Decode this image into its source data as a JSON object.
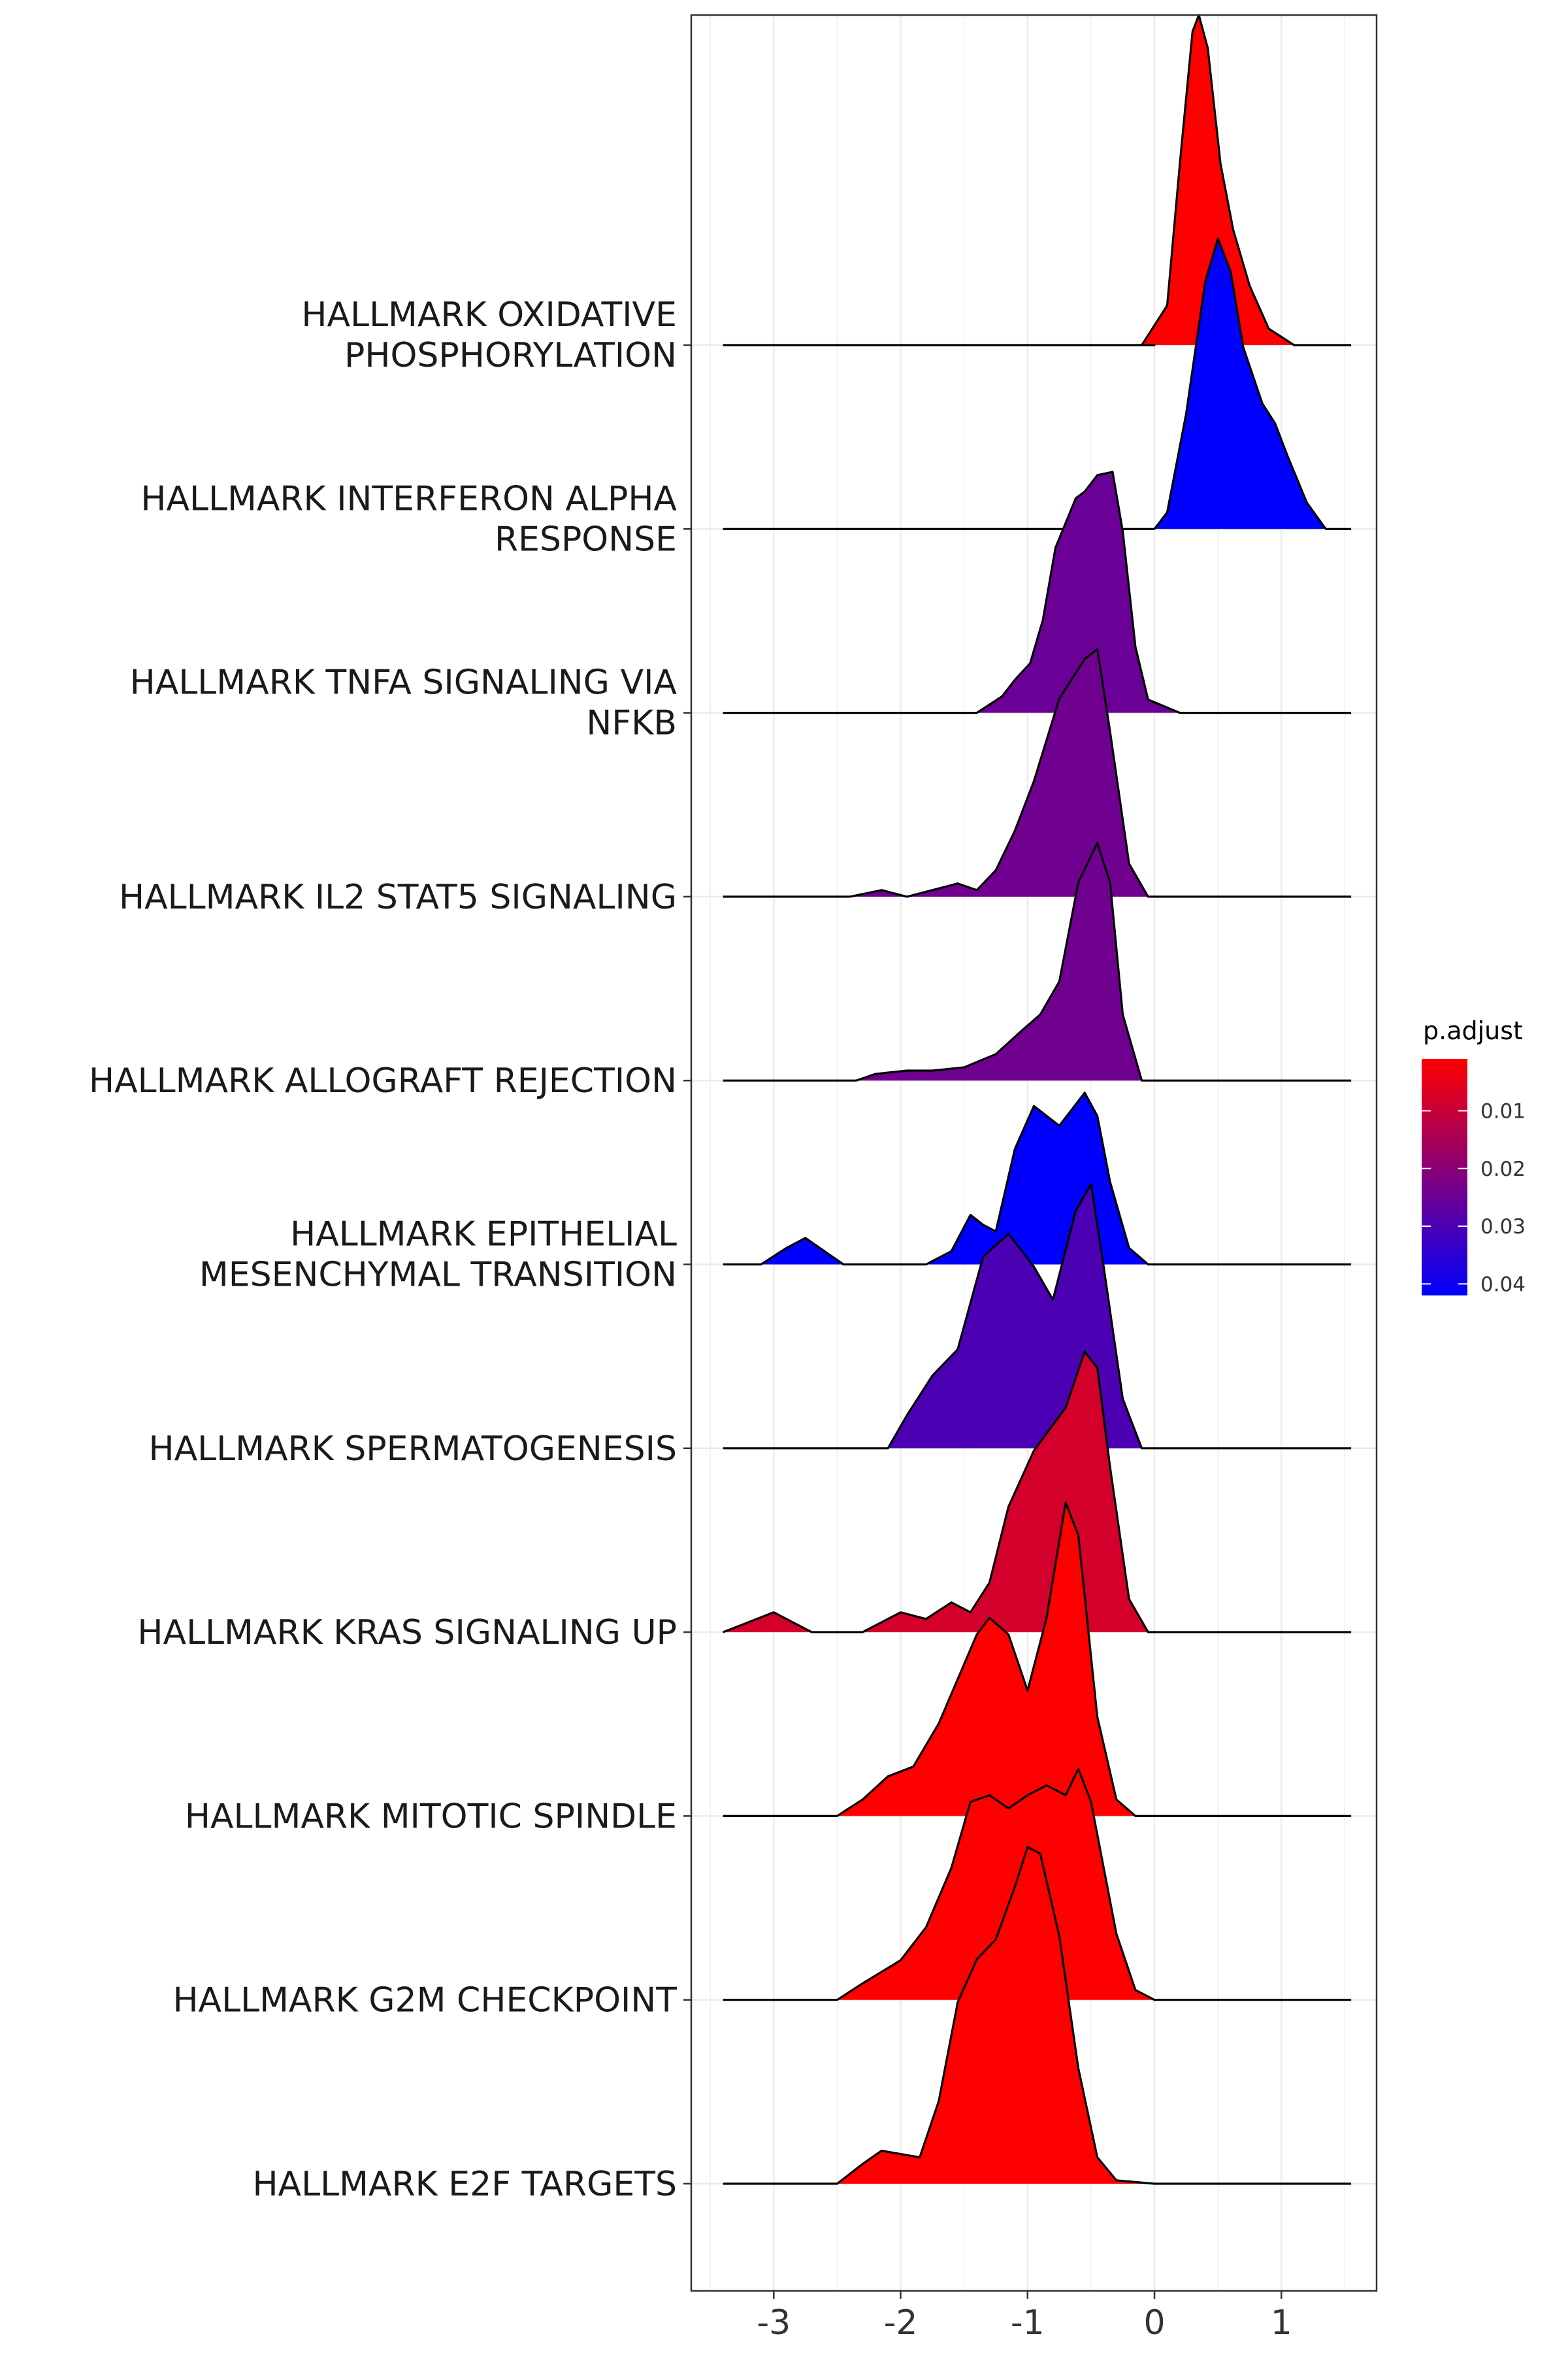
{
  "chart_data": {
    "type": "ridgeline",
    "title": "",
    "xlabel": "",
    "ylabel": "",
    "xlim": [
      -3.65,
      1.75
    ],
    "x_ticks": [
      -3,
      -2,
      -1,
      0,
      1
    ],
    "x_tick_labels": [
      "-3",
      "-2",
      "-1",
      "0",
      "1"
    ],
    "grid": true,
    "legend": {
      "title": "p.adjust",
      "position": "right",
      "ticks": [
        0.01,
        0.02,
        0.03,
        0.04
      ],
      "tick_labels": [
        "0.01",
        "0.02",
        "0.03",
        "0.04"
      ],
      "range": [
        0.001,
        0.042
      ],
      "low_color": "#ff0000",
      "high_color": "#0000ff"
    },
    "series": [
      {
        "label_lines": [
          "HALLMARK OXIDATIVE",
          "PHOSPHORYLATION"
        ],
        "p_adjust": 0.001,
        "points": [
          [
            -3.4,
            0
          ],
          [
            0.0,
            0
          ],
          [
            -0.1,
            0
          ],
          [
            0.1,
            0.12
          ],
          [
            0.2,
            0.55
          ],
          [
            0.3,
            0.95
          ],
          [
            0.35,
            1.0
          ],
          [
            0.42,
            0.9
          ],
          [
            0.52,
            0.55
          ],
          [
            0.62,
            0.35
          ],
          [
            0.75,
            0.18
          ],
          [
            0.9,
            0.05
          ],
          [
            1.1,
            0
          ],
          [
            1.55,
            0
          ]
        ]
      },
      {
        "label_lines": [
          "HALLMARK INTERFERON ALPHA",
          "RESPONSE"
        ],
        "p_adjust": 0.042,
        "points": [
          [
            -3.4,
            0
          ],
          [
            0.0,
            0
          ],
          [
            0.1,
            0.05
          ],
          [
            0.25,
            0.35
          ],
          [
            0.4,
            0.75
          ],
          [
            0.5,
            0.88
          ],
          [
            0.6,
            0.78
          ],
          [
            0.7,
            0.55
          ],
          [
            0.85,
            0.38
          ],
          [
            0.95,
            0.32
          ],
          [
            1.05,
            0.22
          ],
          [
            1.2,
            0.08
          ],
          [
            1.35,
            0
          ],
          [
            1.55,
            0
          ]
        ]
      },
      {
        "label_lines": [
          "HALLMARK TNFA SIGNALING VIA",
          "NFKB"
        ],
        "p_adjust": 0.025,
        "points": [
          [
            -3.4,
            0
          ],
          [
            -1.4,
            0
          ],
          [
            -1.2,
            0.05
          ],
          [
            -1.1,
            0.1
          ],
          [
            -0.98,
            0.15
          ],
          [
            -0.88,
            0.28
          ],
          [
            -0.78,
            0.5
          ],
          [
            -0.62,
            0.65
          ],
          [
            -0.55,
            0.67
          ],
          [
            -0.45,
            0.72
          ],
          [
            -0.33,
            0.73
          ],
          [
            -0.25,
            0.55
          ],
          [
            -0.15,
            0.2
          ],
          [
            -0.05,
            0.04
          ],
          [
            0.2,
            0
          ],
          [
            1.55,
            0
          ]
        ]
      },
      {
        "label_lines": [
          "HALLMARK IL2 STAT5 SIGNALING"
        ],
        "p_adjust": 0.024,
        "points": [
          [
            -3.4,
            0
          ],
          [
            -2.4,
            0
          ],
          [
            -2.15,
            0.02
          ],
          [
            -1.95,
            0
          ],
          [
            -1.75,
            0.02
          ],
          [
            -1.55,
            0.04
          ],
          [
            -1.4,
            0.02
          ],
          [
            -1.25,
            0.08
          ],
          [
            -1.1,
            0.2
          ],
          [
            -0.95,
            0.35
          ],
          [
            -0.75,
            0.6
          ],
          [
            -0.55,
            0.72
          ],
          [
            -0.45,
            0.75
          ],
          [
            -0.35,
            0.5
          ],
          [
            -0.2,
            0.1
          ],
          [
            -0.05,
            0
          ],
          [
            1.55,
            0
          ]
        ]
      },
      {
        "label_lines": [
          "HALLMARK ALLOGRAFT REJECTION"
        ],
        "p_adjust": 0.024,
        "points": [
          [
            -3.4,
            0
          ],
          [
            -2.35,
            0
          ],
          [
            -2.2,
            0.02
          ],
          [
            -1.95,
            0.03
          ],
          [
            -1.75,
            0.03
          ],
          [
            -1.5,
            0.04
          ],
          [
            -1.25,
            0.08
          ],
          [
            -1.05,
            0.15
          ],
          [
            -0.9,
            0.2
          ],
          [
            -0.75,
            0.3
          ],
          [
            -0.6,
            0.6
          ],
          [
            -0.45,
            0.72
          ],
          [
            -0.35,
            0.6
          ],
          [
            -0.25,
            0.2
          ],
          [
            -0.1,
            0
          ],
          [
            1.55,
            0
          ]
        ]
      },
      {
        "label_lines": [
          "HALLMARK EPITHELIAL",
          "MESENCHYMAL TRANSITION"
        ],
        "p_adjust": 0.042,
        "points": [
          [
            -3.4,
            0
          ],
          [
            -3.1,
            0
          ],
          [
            -2.9,
            0.05
          ],
          [
            -2.75,
            0.08
          ],
          [
            -2.6,
            0.04
          ],
          [
            -2.45,
            0
          ],
          [
            -1.8,
            0
          ],
          [
            -1.6,
            0.04
          ],
          [
            -1.45,
            0.15
          ],
          [
            -1.35,
            0.12
          ],
          [
            -1.25,
            0.1
          ],
          [
            -1.1,
            0.35
          ],
          [
            -0.95,
            0.48
          ],
          [
            -0.75,
            0.42
          ],
          [
            -0.55,
            0.52
          ],
          [
            -0.45,
            0.45
          ],
          [
            -0.35,
            0.25
          ],
          [
            -0.2,
            0.05
          ],
          [
            -0.05,
            0
          ],
          [
            1.55,
            0
          ]
        ]
      },
      {
        "label_lines": [
          "HALLMARK SPERMATOGENESIS"
        ],
        "p_adjust": 0.03,
        "points": [
          [
            -3.4,
            0
          ],
          [
            -2.1,
            0
          ],
          [
            -1.95,
            0.1
          ],
          [
            -1.75,
            0.22
          ],
          [
            -1.55,
            0.3
          ],
          [
            -1.35,
            0.58
          ],
          [
            -1.15,
            0.65
          ],
          [
            -0.95,
            0.55
          ],
          [
            -0.8,
            0.45
          ],
          [
            -0.62,
            0.72
          ],
          [
            -0.5,
            0.8
          ],
          [
            -0.4,
            0.55
          ],
          [
            -0.25,
            0.15
          ],
          [
            -0.1,
            0
          ],
          [
            1.55,
            0
          ]
        ]
      },
      {
        "label_lines": [
          "HALLMARK KRAS SIGNALING UP"
        ],
        "p_adjust": 0.008,
        "points": [
          [
            -3.4,
            0
          ],
          [
            -3.2,
            0.03
          ],
          [
            -3.0,
            0.06
          ],
          [
            -2.85,
            0.03
          ],
          [
            -2.7,
            0
          ],
          [
            -2.3,
            0
          ],
          [
            -2.0,
            0.06
          ],
          [
            -1.8,
            0.04
          ],
          [
            -1.6,
            0.09
          ],
          [
            -1.45,
            0.06
          ],
          [
            -1.3,
            0.15
          ],
          [
            -1.15,
            0.38
          ],
          [
            -0.95,
            0.55
          ],
          [
            -0.7,
            0.68
          ],
          [
            -0.55,
            0.85
          ],
          [
            -0.45,
            0.8
          ],
          [
            -0.35,
            0.5
          ],
          [
            -0.2,
            0.1
          ],
          [
            -0.05,
            0
          ],
          [
            1.55,
            0
          ]
        ]
      },
      {
        "label_lines": [
          "HALLMARK MITOTIC SPINDLE"
        ],
        "p_adjust": 0.001,
        "points": [
          [
            -3.4,
            0
          ],
          [
            -2.5,
            0
          ],
          [
            -2.3,
            0.05
          ],
          [
            -2.1,
            0.12
          ],
          [
            -1.9,
            0.15
          ],
          [
            -1.7,
            0.28
          ],
          [
            -1.4,
            0.55
          ],
          [
            -1.3,
            0.6
          ],
          [
            -1.15,
            0.55
          ],
          [
            -1.0,
            0.38
          ],
          [
            -0.85,
            0.6
          ],
          [
            -0.7,
            0.95
          ],
          [
            -0.6,
            0.85
          ],
          [
            -0.45,
            0.3
          ],
          [
            -0.3,
            0.05
          ],
          [
            -0.15,
            0
          ],
          [
            1.55,
            0
          ]
        ]
      },
      {
        "label_lines": [
          "HALLMARK G2M CHECKPOINT"
        ],
        "p_adjust": 0.001,
        "points": [
          [
            -3.4,
            0
          ],
          [
            -2.5,
            0
          ],
          [
            -2.3,
            0.05
          ],
          [
            -2.0,
            0.12
          ],
          [
            -1.8,
            0.22
          ],
          [
            -1.6,
            0.4
          ],
          [
            -1.45,
            0.6
          ],
          [
            -1.3,
            0.62
          ],
          [
            -1.15,
            0.58
          ],
          [
            -1.0,
            0.62
          ],
          [
            -0.85,
            0.65
          ],
          [
            -0.7,
            0.62
          ],
          [
            -0.6,
            0.7
          ],
          [
            -0.5,
            0.6
          ],
          [
            -0.3,
            0.2
          ],
          [
            -0.15,
            0.03
          ],
          [
            0.0,
            0
          ],
          [
            1.55,
            0
          ]
        ]
      },
      {
        "label_lines": [
          "HALLMARK E2F TARGETS"
        ],
        "p_adjust": 0.001,
        "points": [
          [
            -3.4,
            0
          ],
          [
            -2.5,
            0
          ],
          [
            -2.3,
            0.06
          ],
          [
            -2.15,
            0.1
          ],
          [
            -2.0,
            0.09
          ],
          [
            -1.85,
            0.08
          ],
          [
            -1.7,
            0.25
          ],
          [
            -1.55,
            0.55
          ],
          [
            -1.4,
            0.68
          ],
          [
            -1.25,
            0.74
          ],
          [
            -1.1,
            0.9
          ],
          [
            -1.0,
            1.02
          ],
          [
            -0.9,
            1.0
          ],
          [
            -0.75,
            0.75
          ],
          [
            -0.6,
            0.35
          ],
          [
            -0.45,
            0.08
          ],
          [
            -0.3,
            0.01
          ],
          [
            0.0,
            0
          ],
          [
            1.55,
            0
          ]
        ]
      }
    ]
  }
}
